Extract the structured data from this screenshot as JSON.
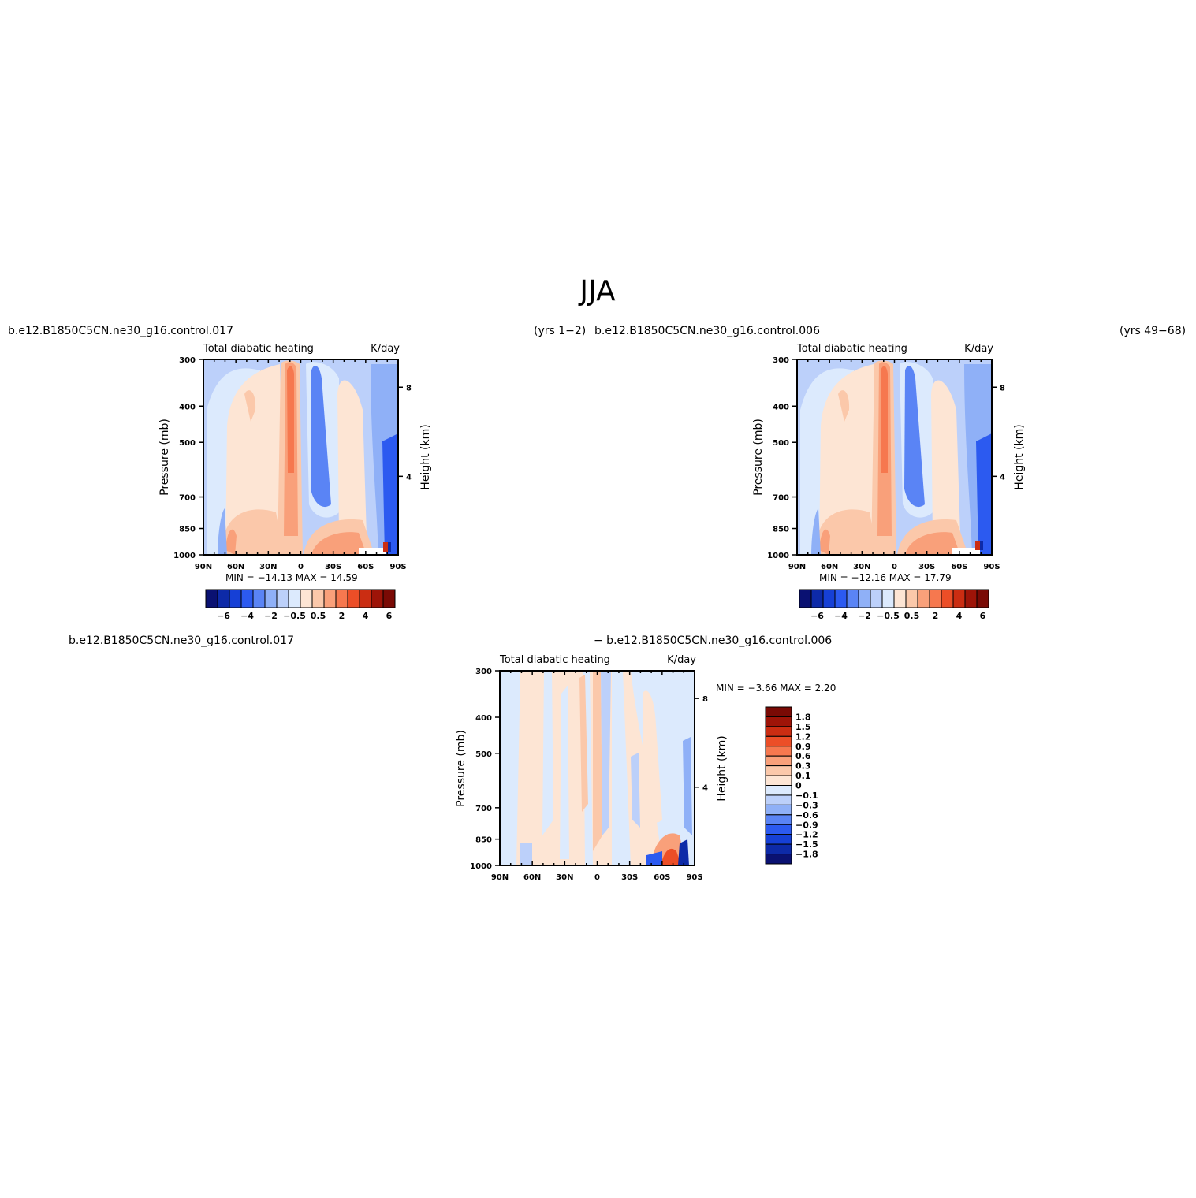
{
  "page_title": "JJA",
  "panels": [
    {
      "case_name": "b.e12.B1850C5CN.ne30_g16.control.017",
      "years": "(yrs 1−2)",
      "left_title": "Total diabatic heating",
      "right_title": "K/day",
      "ylabel": "Pressure (mb)",
      "ylabel_right": "Height (km)",
      "stats": "MIN = −14.13   MAX =   14.59"
    },
    {
      "case_name": "b.e12.B1850C5CN.ne30_g16.control.006",
      "years": "(yrs 49−68)",
      "left_title": "Total diabatic heating",
      "right_title": "K/day",
      "ylabel": "Pressure (mb)",
      "ylabel_right": "Height (km)",
      "stats": "MIN = −12.16   MAX =   17.79"
    },
    {
      "case_left": "b.e12.B1850C5CN.ne30_g16.control.017",
      "case_right": "− b.e12.B1850C5CN.ne30_g16.control.006",
      "left_title": "Total diabatic heating",
      "right_title": "K/day",
      "ylabel": "Pressure (mb)",
      "ylabel_right": "Height (km)",
      "stats": "MIN =    −3.66   MAX =     2.20"
    }
  ],
  "chart_data": [
    {
      "type": "heatmap",
      "title": "Total diabatic heating",
      "units": "K/day",
      "x_ticks": [
        "90N",
        "60N",
        "30N",
        "0",
        "30S",
        "60S",
        "90S"
      ],
      "y_ticks": [
        "300",
        "400",
        "500",
        "700",
        "850",
        "1000"
      ],
      "y_right_ticks": [
        "8",
        "4"
      ],
      "ylabel": "Pressure (mb)",
      "ylabel_right": "Height (km)",
      "min": -14.13,
      "max": 14.59,
      "colorbar_labels": [
        "−6",
        "−4",
        "−2",
        "−0.5",
        "0.5",
        "2",
        "4",
        "6"
      ]
    },
    {
      "type": "heatmap",
      "title": "Total diabatic heating",
      "units": "K/day",
      "x_ticks": [
        "90N",
        "60N",
        "30N",
        "0",
        "30S",
        "60S",
        "90S"
      ],
      "y_ticks": [
        "300",
        "400",
        "500",
        "700",
        "850",
        "1000"
      ],
      "y_right_ticks": [
        "8",
        "4"
      ],
      "ylabel": "Pressure (mb)",
      "ylabel_right": "Height (km)",
      "min": -12.16,
      "max": 17.79,
      "colorbar_labels": [
        "−6",
        "−4",
        "−2",
        "−0.5",
        "0.5",
        "2",
        "4",
        "6"
      ]
    },
    {
      "type": "heatmap",
      "title": "Total diabatic heating",
      "units": "K/day",
      "x_ticks": [
        "90N",
        "60N",
        "30N",
        "0",
        "30S",
        "60S",
        "90S"
      ],
      "y_ticks": [
        "300",
        "400",
        "500",
        "700",
        "850",
        "1000"
      ],
      "y_right_ticks": [
        "8",
        "4"
      ],
      "ylabel": "Pressure (mb)",
      "ylabel_right": "Height (km)",
      "min": -3.66,
      "max": 2.2,
      "colorbar_labels": [
        "1.8",
        "1.5",
        "1.2",
        "0.9",
        "0.6",
        "0.3",
        "0.1",
        "0",
        "−0.1",
        "−0.3",
        "−0.6",
        "−0.9",
        "−1.2",
        "−1.5",
        "−1.8"
      ]
    }
  ],
  "colors": {
    "palette": [
      "#0a1172",
      "#0d2aa8",
      "#1640d6",
      "#2c5af0",
      "#5a84f5",
      "#8fb0f7",
      "#bcd0fa",
      "#dceafd",
      "#fde5d4",
      "#fbc8aa",
      "#f9a07a",
      "#f6784f",
      "#ec4e27",
      "#cb2d12",
      "#9e1408",
      "#7a0a05"
    ]
  }
}
